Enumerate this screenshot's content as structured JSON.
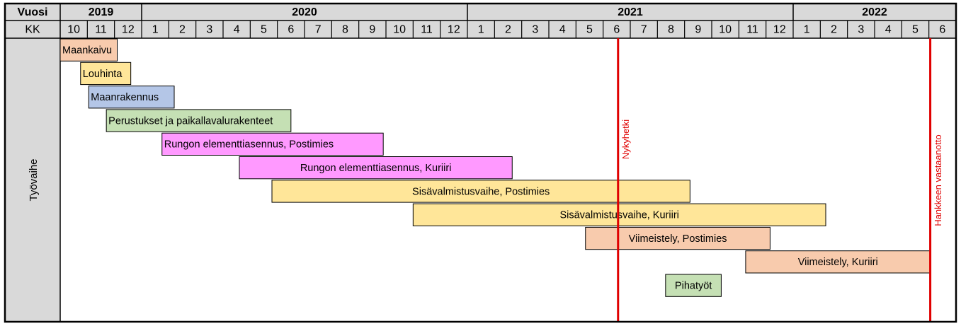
{
  "chart_data": {
    "type": "gantt",
    "year_header": "Vuosi",
    "month_header": "KK",
    "row_header": "Työvaihe",
    "years": [
      2019,
      2020,
      2021,
      2022
    ],
    "categories": [
      "10",
      "11",
      "12",
      "1",
      "2",
      "3",
      "4",
      "5",
      "6",
      "7",
      "8",
      "9",
      "10",
      "11",
      "12",
      "1",
      "2",
      "3",
      "4",
      "5",
      "6",
      "7",
      "8",
      "9",
      "10",
      "11",
      "12",
      "1",
      "2",
      "3",
      "4",
      "5",
      "6"
    ],
    "xlim": [
      0,
      33
    ],
    "tasks": [
      {
        "name": "Maankaivu",
        "start": 0,
        "end": 2.1,
        "color": "#f8cbad",
        "align": "left"
      },
      {
        "name": "Louhinta",
        "start": 0.75,
        "end": 2.6,
        "color": "#ffe699",
        "align": "left"
      },
      {
        "name": "Maanrakennus",
        "start": 1.05,
        "end": 4.2,
        "color": "#b4c6e7",
        "align": "left"
      },
      {
        "name": "Perustukset ja paikallavalurakenteet",
        "start": 1.7,
        "end": 8.5,
        "color": "#c5e0b4",
        "align": "left"
      },
      {
        "name": "Rungon elementtiasennus, Postimies",
        "start": 3.75,
        "end": 11.9,
        "color": "#ff99ff",
        "align": "left"
      },
      {
        "name": "Rungon elementtiasennus, Kuriiri",
        "start": 6.6,
        "end": 16.65,
        "color": "#ff99ff",
        "align": "center"
      },
      {
        "name": "Sisävalmistusvaihe, Postimies",
        "start": 7.8,
        "end": 23.2,
        "color": "#ffe699",
        "align": "center"
      },
      {
        "name": "Sisävalmistusvaihe, Kuriiri",
        "start": 13.0,
        "end": 28.2,
        "color": "#ffe699",
        "align": "center"
      },
      {
        "name": "Viimeistely, Postimies",
        "start": 19.35,
        "end": 26.15,
        "color": "#f8cbad",
        "align": "center"
      },
      {
        "name": "Viimeistely, Kuriiri",
        "start": 25.25,
        "end": 32.05,
        "color": "#f8cbad",
        "align": "center"
      },
      {
        "name": "Pihatyöt",
        "start": 22.3,
        "end": 24.35,
        "color": "#c5e0b4",
        "align": "center"
      }
    ],
    "markers": [
      {
        "label": "Nykyhetki",
        "x": 20.55,
        "color": "#e00000"
      },
      {
        "label": "Hankkeen vastaanotto",
        "x": 32.05,
        "color": "#e00000"
      }
    ]
  }
}
